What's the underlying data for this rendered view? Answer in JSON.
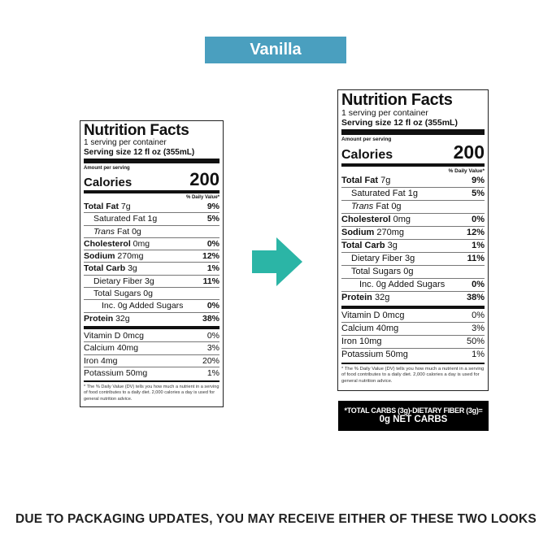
{
  "flavor": "Vanilla",
  "label": {
    "title": "Nutrition Facts",
    "servings": "1 serving per container",
    "serving_size": "Serving size  12 fl oz (355mL)",
    "amount_per_serving": "Amount per serving",
    "calories_label": "Calories",
    "calories_value": "200",
    "dv_header": "% Daily Value*",
    "trans_italic": "Trans",
    "trans_rest": " Fat 0g",
    "footnote": "* The % Daily Value (DV) tells you how much a nutrient in a serving of food contributes to a daily diet. 2,000 calories a day is used for general nutrition advice."
  },
  "left_nutrients": [
    {
      "bold": "Total Fat",
      "amount": " 7g",
      "pct": "9%",
      "indent": 0
    },
    {
      "bold": "",
      "amount": "Saturated Fat 1g",
      "pct": "5%",
      "indent": 1
    },
    {
      "bold": "Cholesterol",
      "amount": " 0mg",
      "pct": "0%",
      "indent": 0
    },
    {
      "bold": "Sodium",
      "amount": " 270mg",
      "pct": "12%",
      "indent": 0
    },
    {
      "bold": "Total Carb",
      "amount": " 3g",
      "pct": "1%",
      "indent": 0
    },
    {
      "bold": "",
      "amount": "Dietary Fiber 3g",
      "pct": "11%",
      "indent": 1
    },
    {
      "bold": "",
      "amount": "Total Sugars 0g",
      "pct": "",
      "indent": 1
    },
    {
      "bold": "",
      "amount": "Inc. 0g Added Sugars",
      "pct": "0%",
      "indent": 2
    },
    {
      "bold": "Protein",
      "amount": " 32g",
      "pct": "38%",
      "indent": 0
    }
  ],
  "left_vitamins": [
    {
      "name": "Vitamin D 0mcg",
      "pct": "0%"
    },
    {
      "name": "Calcium 40mg",
      "pct": "3%"
    },
    {
      "name": "Iron 4mg",
      "pct": "20%"
    },
    {
      "name": "Potassium 50mg",
      "pct": "1%"
    }
  ],
  "right_vitamins": [
    {
      "name": "Vitamin D 0mcg",
      "pct": "0%"
    },
    {
      "name": "Calcium 40mg",
      "pct": "3%"
    },
    {
      "name": "Iron 10mg",
      "pct": "50%"
    },
    {
      "name": "Potassium 50mg",
      "pct": "1%"
    }
  ],
  "net_carbs": {
    "line1": "*TOTAL CARBS (3g)-DIETARY FIBER (3g)=",
    "line2": "0g NET CARBS"
  },
  "notice": "DUE TO PACKAGING UPDATES, YOU MAY RECEIVE EITHER OF THESE TWO LOOKS",
  "colors": {
    "banner": "#4a9fbf",
    "arrow": "#2bb5a6"
  },
  "icons": {
    "arrow": "right-arrow-icon"
  }
}
